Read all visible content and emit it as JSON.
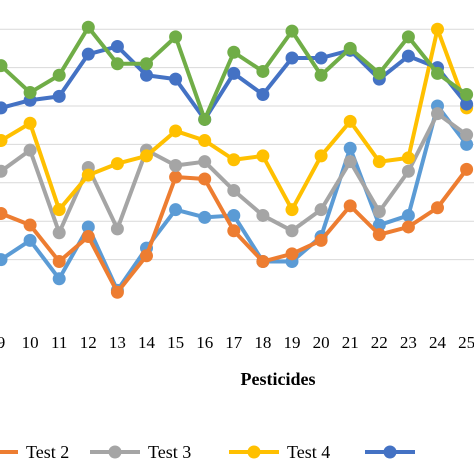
{
  "chart_data": {
    "type": "line",
    "xlabel": "Pesticides",
    "ylabel": "",
    "categories": [
      "9",
      "10",
      "11",
      "12",
      "13",
      "14",
      "15",
      "16",
      "17",
      "18",
      "19",
      "20",
      "21",
      "22",
      "23",
      "24",
      "25"
    ],
    "grid": true,
    "legend_position": "bottom",
    "series": [
      {
        "name": "",
        "color": "#5b9bd5",
        "values": [
          1.0,
          1.5,
          0.5,
          1.85,
          0.2,
          1.3,
          2.3,
          2.1,
          2.15,
          0.95,
          0.95,
          1.6,
          3.9,
          1.9,
          2.15,
          5.0,
          4.0
        ]
      },
      {
        "name": "Test 2",
        "color": "#ed7d31",
        "values": [
          2.2,
          1.9,
          0.95,
          1.6,
          0.15,
          1.1,
          3.15,
          3.1,
          1.75,
          0.95,
          1.15,
          1.5,
          2.4,
          1.65,
          1.85,
          2.35,
          3.35
        ]
      },
      {
        "name": "Test 3",
        "color": "#a5a5a5",
        "values": [
          3.3,
          3.85,
          1.7,
          3.4,
          1.8,
          3.85,
          3.45,
          3.55,
          2.8,
          2.15,
          1.75,
          2.3,
          3.55,
          2.25,
          3.3,
          4.8,
          4.25
        ]
      },
      {
        "name": "Test 4",
        "color": "#ffc000",
        "values": [
          4.1,
          4.55,
          2.3,
          3.2,
          3.5,
          3.7,
          4.35,
          4.1,
          3.6,
          3.7,
          2.3,
          3.7,
          4.6,
          3.55,
          3.65,
          7.0,
          4.95
        ]
      },
      {
        "name": "",
        "color": "#4472c4",
        "values": [
          4.95,
          5.15,
          5.25,
          6.35,
          6.55,
          5.8,
          5.7,
          4.65,
          5.85,
          5.3,
          6.25,
          6.25,
          6.45,
          5.7,
          6.3,
          6.0,
          5.05
        ]
      },
      {
        "name": "",
        "color": "#70ad47",
        "values": [
          6.05,
          5.35,
          5.8,
          7.05,
          6.1,
          6.1,
          6.8,
          4.65,
          6.4,
          5.9,
          6.95,
          5.8,
          6.5,
          5.85,
          6.8,
          5.85,
          5.3
        ]
      }
    ],
    "ylim": [
      0,
      7.5
    ]
  },
  "legend": [
    {
      "label": "Test 2",
      "color": "#ed7d31"
    },
    {
      "label": "Test 3",
      "color": "#a5a5a5"
    },
    {
      "label": "Test 4",
      "color": "#ffc000"
    },
    {
      "label": "",
      "color": "#4472c4"
    }
  ]
}
